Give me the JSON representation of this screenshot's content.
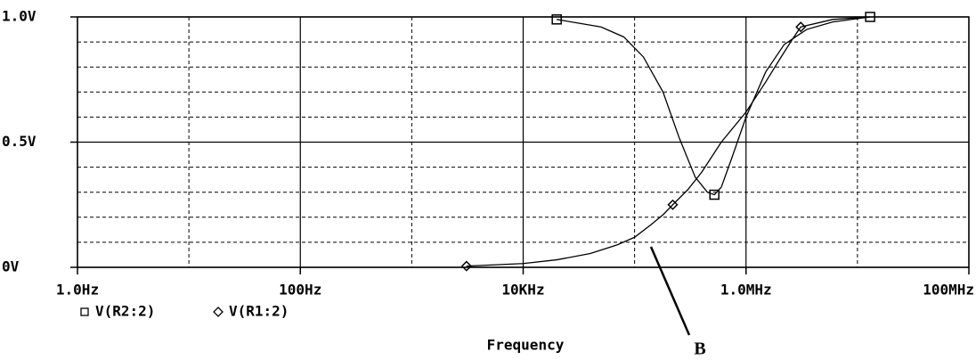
{
  "chart_data": {
    "type": "line",
    "x_label": "Frequency",
    "annotation": "B",
    "xscale": "log",
    "xlim": [
      1,
      100000000
    ],
    "xticks": [
      {
        "value": 1,
        "label": "1.0Hz"
      },
      {
        "value": 100,
        "label": "100Hz"
      },
      {
        "value": 10000,
        "label": "10KHz"
      },
      {
        "value": 1000000,
        "label": "1.0MHz"
      },
      {
        "value": 100000000,
        "label": "100MHz"
      }
    ],
    "minor_xticks": [
      10,
      1000,
      100000,
      10000000
    ],
    "ylim": [
      0,
      1
    ],
    "yticks": [
      {
        "value": 0,
        "label": "0V"
      },
      {
        "value": 0.5,
        "label": "0.5V"
      },
      {
        "value": 1,
        "label": "1.0V"
      }
    ],
    "minor_yticks": [
      0.1,
      0.2,
      0.3,
      0.4,
      0.6,
      0.7,
      0.8,
      0.9
    ],
    "grid": true,
    "color": "#000000",
    "series": [
      {
        "name": "V(R2:2)",
        "marker": "square",
        "x": [
          20000,
          50000,
          80000,
          120000,
          180000,
          250000,
          350000,
          450000,
          520000,
          600000,
          750000,
          1000000,
          1500000,
          2200000,
          3500000,
          6000000,
          13000000
        ],
        "values": [
          0.99,
          0.96,
          0.92,
          0.84,
          0.7,
          0.52,
          0.36,
          0.3,
          0.29,
          0.32,
          0.44,
          0.6,
          0.78,
          0.89,
          0.95,
          0.98,
          1.0
        ]
      },
      {
        "name": "V(R1:2)",
        "marker": "diamond",
        "x": [
          3100,
          10000,
          20000,
          40000,
          70000,
          100000,
          140000,
          180000,
          220000,
          300000,
          400000,
          600000,
          1000000,
          1500000,
          2000000,
          2600000,
          3100000,
          6000000,
          13000000
        ],
        "values": [
          0.005,
          0.015,
          0.03,
          0.055,
          0.09,
          0.12,
          0.17,
          0.21,
          0.25,
          0.31,
          0.38,
          0.5,
          0.62,
          0.74,
          0.83,
          0.91,
          0.96,
          0.99,
          1.0
        ]
      }
    ]
  }
}
